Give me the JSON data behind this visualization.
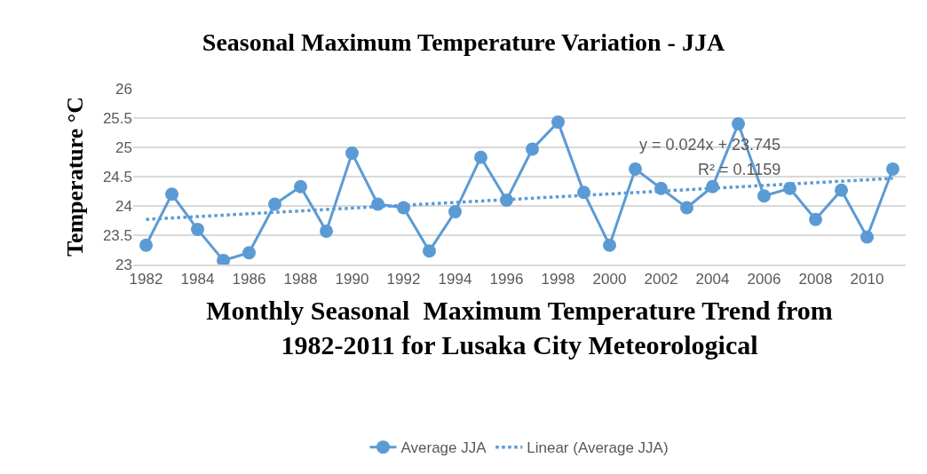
{
  "chart_data": {
    "type": "line",
    "title": "Seasonal Maximum Temperature Variation - JJA",
    "xlabel": "Monthly Seasonal  Maximum Temperature Trend from\n1982-2011 for Lusaka City Meteorological",
    "ylabel": "Temperature °C",
    "x": [
      1982,
      1983,
      1984,
      1985,
      1986,
      1987,
      1988,
      1989,
      1990,
      1991,
      1992,
      1993,
      1994,
      1995,
      1996,
      1997,
      1998,
      1999,
      2000,
      2001,
      2002,
      2003,
      2004,
      2005,
      2006,
      2007,
      2008,
      2009,
      2010,
      2011
    ],
    "series": [
      {
        "name": "Average JJA",
        "color": "#5b9bd5",
        "marker": "circle",
        "line_style": "solid",
        "values": [
          23.33,
          24.2,
          23.6,
          23.07,
          23.2,
          24.03,
          24.33,
          23.57,
          24.9,
          24.03,
          23.97,
          23.23,
          23.9,
          24.83,
          24.1,
          24.97,
          25.43,
          24.23,
          23.33,
          24.63,
          24.3,
          23.97,
          24.33,
          25.4,
          24.17,
          24.3,
          23.77,
          24.27,
          23.47,
          24.63
        ]
      },
      {
        "name": "Linear (Average JJA)",
        "color": "#5b9bd5",
        "marker": "none",
        "line_style": "dotted",
        "x": [
          1982,
          2011
        ],
        "values": [
          23.77,
          24.47
        ]
      }
    ],
    "annotations": [
      "y = 0.024x + 23.745",
      "R² = 0.1159"
    ],
    "xlim": [
      1981.5,
      2011.5
    ],
    "xticks": [
      1982,
      1984,
      1986,
      1988,
      1990,
      1992,
      1994,
      1996,
      1998,
      2000,
      2002,
      2004,
      2006,
      2008,
      2010
    ],
    "ylim": [
      23,
      26
    ],
    "yticks": [
      23,
      23.5,
      24,
      24.5,
      25,
      25.5,
      26
    ],
    "grid": "y",
    "legend": "bottom"
  }
}
